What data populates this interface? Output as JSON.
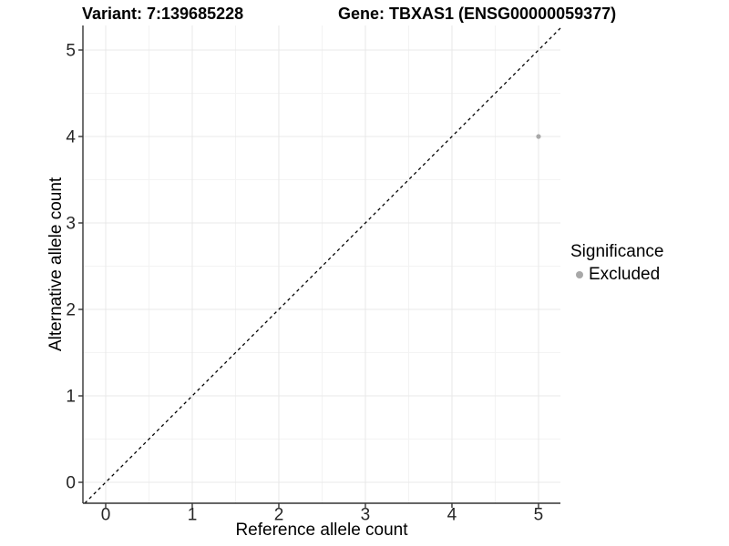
{
  "chart_data": {
    "type": "scatter",
    "title_left": "Variant: 7:139685228",
    "title_right": "Gene: TBXAS1 (ENSG00000059377)",
    "xlabel": "Reference allele count",
    "ylabel": "Alternative allele count",
    "xlim": [
      -0.263,
      5.253
    ],
    "ylim": [
      -0.242,
      5.284
    ],
    "xticks": [
      0,
      1,
      2,
      3,
      4,
      5
    ],
    "yticks": [
      0,
      1,
      2,
      3,
      4,
      5
    ],
    "xticks_minor": [
      0.5,
      1.5,
      2.5,
      3.5,
      4.5
    ],
    "yticks_minor": [
      0.5,
      1.5,
      2.5,
      3.5,
      4.5
    ],
    "grid": true,
    "points": [
      {
        "x": 5,
        "y": 4,
        "significance": "Excluded"
      }
    ],
    "identity_line": {
      "slope": 1,
      "intercept": 0,
      "style": "dashed"
    },
    "legend": {
      "title": "Significance",
      "position": "right",
      "entries": [
        {
          "label": "Excluded",
          "marker": "circle",
          "color": "#a8a8a8"
        }
      ]
    },
    "colors": {
      "point": "#a8a8a8",
      "grid_major": "#e8e8e8",
      "grid_minor": "#f3f3f3",
      "axis": "#333333",
      "tick_text": "#262626",
      "identity_line": "#000000"
    }
  }
}
